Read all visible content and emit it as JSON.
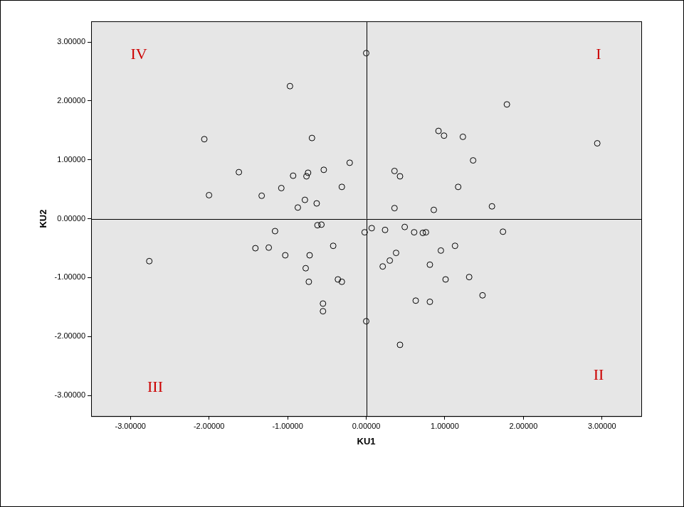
{
  "chart_data": {
    "type": "scatter",
    "x_label": "KU1",
    "y_label": "KU2",
    "annotations": [
      "I",
      "II",
      "III",
      "IV"
    ],
    "reference_lines": {
      "x": 0,
      "y": 0
    },
    "xlim": [
      -3.5,
      3.5
    ],
    "ylim": [
      -3.35,
      3.35
    ],
    "xticks": [
      {
        "value": -3,
        "label": "-3.00000"
      },
      {
        "value": -2,
        "label": "-2.00000"
      },
      {
        "value": -1,
        "label": "-1.00000"
      },
      {
        "value": 0,
        "label": "0.00000"
      },
      {
        "value": 1,
        "label": "1.00000"
      },
      {
        "value": 2,
        "label": "2.00000"
      },
      {
        "value": 3,
        "label": "3.00000"
      }
    ],
    "yticks": [
      {
        "value": -3,
        "label": "-3.00000"
      },
      {
        "value": -2,
        "label": "-2.00000"
      },
      {
        "value": -1,
        "label": "-1.00000"
      },
      {
        "value": 0,
        "label": "0.00000"
      },
      {
        "value": 1,
        "label": "1.00000"
      },
      {
        "value": 2,
        "label": "2.00000"
      },
      {
        "value": 3,
        "label": "3.00000"
      }
    ],
    "grid": false,
    "marker": "hollow_circle",
    "color": "#000000",
    "x": [
      0,
      -0.97,
      1.79,
      2.94,
      -2.06,
      0.92,
      0.99,
      1.23,
      -0.69,
      1.36,
      -1.62,
      -2.0,
      -0.54,
      -0.74,
      -0.93,
      -0.76,
      -0.21,
      0.36,
      0.43,
      -1.08,
      -1.33,
      -0.78,
      -0.87,
      -0.63,
      -0.31,
      1.17,
      1.6,
      0.36,
      0.86,
      -0.62,
      -0.57,
      -1.16,
      -0.02,
      0.07,
      0.24,
      0.49,
      0.61,
      0.72,
      1.74,
      0.76,
      -1.41,
      -1.24,
      -1.03,
      -0.72,
      -0.42,
      0.38,
      0.3,
      0.21,
      1.13,
      0.95,
      0.81,
      -2.76,
      -0.77,
      -0.73,
      -0.36,
      -0.31,
      1.01,
      1.31,
      1.48,
      0.63,
      0.81,
      -0.55,
      -0.55,
      0,
      0.43
    ],
    "values": [
      2.81,
      2.25,
      1.94,
      1.28,
      1.35,
      1.49,
      1.41,
      1.39,
      1.37,
      0.99,
      0.79,
      0.4,
      0.83,
      0.78,
      0.73,
      0.72,
      0.95,
      0.81,
      0.72,
      0.52,
      0.39,
      0.32,
      0.19,
      0.26,
      0.54,
      0.54,
      0.21,
      0.18,
      0.15,
      -0.11,
      -0.1,
      -0.21,
      -0.23,
      -0.16,
      -0.19,
      -0.14,
      -0.23,
      -0.24,
      -0.22,
      -0.23,
      -0.5,
      -0.49,
      -0.62,
      -0.62,
      -0.46,
      -0.58,
      -0.71,
      -0.81,
      -0.46,
      -0.54,
      -0.78,
      -0.72,
      -0.84,
      -1.07,
      -1.03,
      -1.07,
      -1.03,
      -0.99,
      -1.3,
      -1.39,
      -1.41,
      -1.44,
      -1.57,
      -1.74,
      -2.14
    ]
  }
}
